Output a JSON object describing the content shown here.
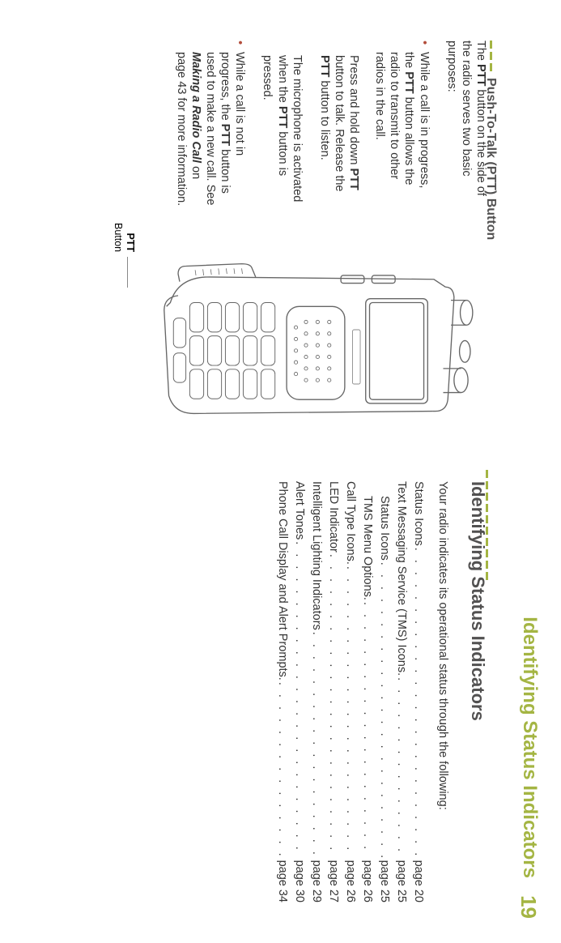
{
  "page": {
    "number": "19",
    "running_header": "Identifying Status Indicators"
  },
  "left": {
    "heading": "Push-To-Talk (PTT) Button",
    "para1_a": "The ",
    "para1_b": "PTT",
    "para1_c": " button on the side of the radio serves two basic purposes:",
    "bullet1_a": "While a call is in progress, the ",
    "bullet1_b": "PTT",
    "bullet1_c": " button allows the radio to transmit to other radios in the call.",
    "para2_a": "Press and hold down ",
    "para2_b": "PTT",
    "para2_c": " button to talk. Release the ",
    "para2_d": "PTT",
    "para2_e": " button to listen.",
    "para3_a": "The microphone is activated when the ",
    "para3_b": "PTT",
    "para3_c": " button is pressed.",
    "bullet2_a": "While a call is not in progress, the ",
    "bullet2_b": "PTT",
    "bullet2_c": " button is used to make a new call. See ",
    "bullet2_d": "Making a Radio Call",
    "bullet2_e": " on page 43 for more information.",
    "figure": {
      "ptt_label_bold": "PTT",
      "ptt_label_text": "Button"
    }
  },
  "right": {
    "heading": "Identifying Status Indicators",
    "intro": "Your radio indicates its operational status through the following:",
    "toc": [
      {
        "label": "Status Icons",
        "page": "page 20",
        "indent": false
      },
      {
        "label": "Text Messaging Service (TMS) Icons.",
        "page": "page 25",
        "indent": false
      },
      {
        "label": "Status Icons",
        "page": "page 25",
        "indent": true
      },
      {
        "label": "TMS Menu Options.",
        "page": "page 26",
        "indent": true
      },
      {
        "label": "Call Type Icons.",
        "page": "page 26",
        "indent": false
      },
      {
        "label": "LED Indicator",
        "page": "page 27",
        "indent": false
      },
      {
        "label": "Intelligent Lighting Indicators",
        "page": "page 29",
        "indent": false
      },
      {
        "label": "Alert Tones",
        "page": "page 30",
        "indent": false
      },
      {
        "label": "Phone Call Display and Alert Prompts.",
        "page": "page 34",
        "indent": false
      }
    ]
  }
}
